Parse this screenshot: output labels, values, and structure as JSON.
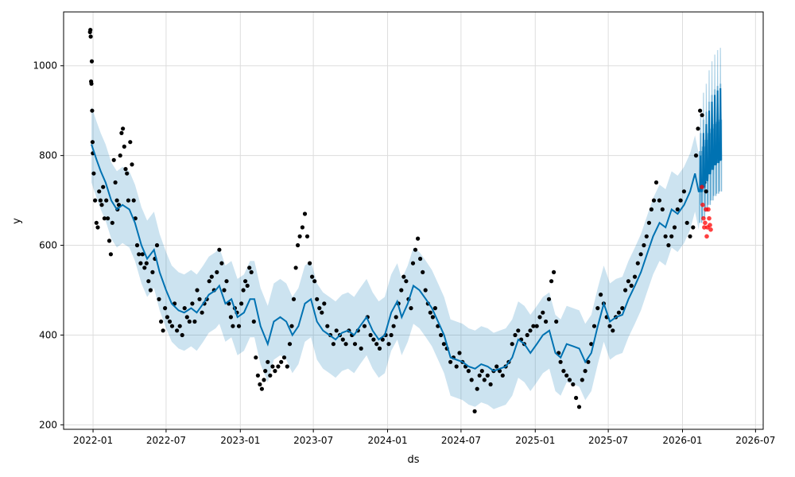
{
  "chart_data": {
    "type": "line",
    "title": "",
    "xlabel": "ds",
    "ylabel": "y",
    "ylim": [
      190,
      1120
    ],
    "xlim": [
      "2021-10-20",
      "2026-07-20"
    ],
    "grid": true,
    "yticks": [
      200,
      400,
      600,
      800,
      1000
    ],
    "xticks": [
      "2022-01",
      "2022-07",
      "2023-01",
      "2023-07",
      "2024-01",
      "2024-07",
      "2025-01",
      "2025-07",
      "2026-01",
      "2026-07"
    ],
    "colors": {
      "forecast": "#0072B2",
      "band": "#0072B2",
      "observed": "#000000",
      "test": "#ff0000",
      "grid": "#dddddd"
    },
    "uncertainty_halfwidth": 85,
    "yhat": [
      [
        "2021-12-28",
        825
      ],
      [
        "2022-01-10",
        790
      ],
      [
        "2022-01-20",
        765
      ],
      [
        "2022-02-01",
        740
      ],
      [
        "2022-02-15",
        700
      ],
      [
        "2022-03-01",
        680
      ],
      [
        "2022-03-15",
        690
      ],
      [
        "2022-04-01",
        680
      ],
      [
        "2022-04-15",
        650
      ],
      [
        "2022-05-01",
        600
      ],
      [
        "2022-05-15",
        570
      ],
      [
        "2022-06-01",
        590
      ],
      [
        "2022-06-15",
        540
      ],
      [
        "2022-07-01",
        500
      ],
      [
        "2022-07-15",
        470
      ],
      [
        "2022-08-01",
        455
      ],
      [
        "2022-08-15",
        450
      ],
      [
        "2022-09-01",
        460
      ],
      [
        "2022-09-15",
        450
      ],
      [
        "2022-10-01",
        470
      ],
      [
        "2022-10-15",
        490
      ],
      [
        "2022-11-01",
        500
      ],
      [
        "2022-11-10",
        510
      ],
      [
        "2022-11-25",
        470
      ],
      [
        "2022-12-10",
        480
      ],
      [
        "2022-12-25",
        440
      ],
      [
        "2023-01-10",
        450
      ],
      [
        "2023-01-25",
        480
      ],
      [
        "2023-02-05",
        480
      ],
      [
        "2023-02-20",
        420
      ],
      [
        "2023-03-10",
        380
      ],
      [
        "2023-03-25",
        430
      ],
      [
        "2023-04-10",
        440
      ],
      [
        "2023-04-25",
        430
      ],
      [
        "2023-05-10",
        400
      ],
      [
        "2023-05-25",
        420
      ],
      [
        "2023-06-10",
        470
      ],
      [
        "2023-06-25",
        480
      ],
      [
        "2023-07-10",
        430
      ],
      [
        "2023-07-25",
        410
      ],
      [
        "2023-08-10",
        400
      ],
      [
        "2023-08-25",
        390
      ],
      [
        "2023-09-10",
        405
      ],
      [
        "2023-09-25",
        410
      ],
      [
        "2023-10-10",
        400
      ],
      [
        "2023-10-25",
        420
      ],
      [
        "2023-11-10",
        440
      ],
      [
        "2023-11-25",
        410
      ],
      [
        "2023-12-10",
        390
      ],
      [
        "2023-12-25",
        400
      ],
      [
        "2024-01-10",
        450
      ],
      [
        "2024-01-25",
        475
      ],
      [
        "2024-02-05",
        440
      ],
      [
        "2024-02-20",
        470
      ],
      [
        "2024-03-05",
        510
      ],
      [
        "2024-03-20",
        500
      ],
      [
        "2024-04-05",
        480
      ],
      [
        "2024-04-20",
        460
      ],
      [
        "2024-05-05",
        430
      ],
      [
        "2024-05-20",
        400
      ],
      [
        "2024-06-05",
        350
      ],
      [
        "2024-06-20",
        345
      ],
      [
        "2024-07-05",
        340
      ],
      [
        "2024-07-20",
        330
      ],
      [
        "2024-08-05",
        325
      ],
      [
        "2024-08-20",
        335
      ],
      [
        "2024-09-05",
        330
      ],
      [
        "2024-09-20",
        320
      ],
      [
        "2024-10-05",
        325
      ],
      [
        "2024-10-20",
        330
      ],
      [
        "2024-11-05",
        350
      ],
      [
        "2024-11-20",
        390
      ],
      [
        "2024-12-05",
        380
      ],
      [
        "2024-12-20",
        360
      ],
      [
        "2025-01-05",
        380
      ],
      [
        "2025-01-20",
        400
      ],
      [
        "2025-02-05",
        410
      ],
      [
        "2025-02-20",
        360
      ],
      [
        "2025-03-05",
        350
      ],
      [
        "2025-03-20",
        380
      ],
      [
        "2025-04-05",
        375
      ],
      [
        "2025-04-20",
        370
      ],
      [
        "2025-05-05",
        340
      ],
      [
        "2025-05-20",
        360
      ],
      [
        "2025-06-05",
        420
      ],
      [
        "2025-06-20",
        470
      ],
      [
        "2025-07-05",
        430
      ],
      [
        "2025-07-20",
        440
      ],
      [
        "2025-08-05",
        445
      ],
      [
        "2025-08-20",
        480
      ],
      [
        "2025-09-05",
        510
      ],
      [
        "2025-09-20",
        540
      ],
      [
        "2025-10-05",
        580
      ],
      [
        "2025-10-20",
        620
      ],
      [
        "2025-11-05",
        650
      ],
      [
        "2025-11-20",
        640
      ],
      [
        "2025-12-05",
        680
      ],
      [
        "2025-12-20",
        670
      ],
      [
        "2026-01-05",
        690
      ],
      [
        "2026-01-20",
        720
      ],
      [
        "2026-02-01",
        760
      ],
      [
        "2026-02-10",
        720
      ]
    ],
    "forecast_weekly": {
      "start": "2026-02-12",
      "base": [
        720,
        730,
        745,
        760,
        770,
        780,
        785,
        790
      ],
      "peak": [
        800,
        850,
        870,
        900,
        920,
        935,
        945,
        950
      ],
      "upper_extra": 90,
      "lower_extra": 70
    },
    "observed_first_month_start_day": 24,
    "observed_monthly": {
      "2021-12": [
        1075,
        1080,
        1065,
        965,
        960,
        1010,
        900,
        830,
        805
      ],
      "2022-01": [
        760,
        700,
        650,
        640,
        720,
        700,
        690,
        730,
        660
      ],
      "2022-02": [
        700,
        660,
        610,
        580,
        650,
        790,
        740,
        700
      ],
      "2022-03": [
        680,
        690,
        800,
        850,
        860,
        820,
        770,
        760,
        700
      ],
      "2022-04": [
        830,
        780,
        700,
        660,
        600,
        580,
        560
      ],
      "2022-05": [
        580,
        550,
        560,
        520,
        500,
        540
      ],
      "2022-06": [
        570,
        600,
        480,
        430,
        410,
        460
      ],
      "2022-07": [
        440,
        430,
        420,
        470,
        410
      ],
      "2022-08": [
        420,
        400,
        460,
        440,
        430
      ],
      "2022-09": [
        470,
        430,
        500,
        480,
        450
      ],
      "2022-10": [
        470,
        480,
        520,
        530,
        500
      ],
      "2022-11": [
        540,
        590,
        560,
        500,
        520
      ],
      "2022-12": [
        470,
        440,
        420,
        460,
        450,
        420
      ],
      "2023-01": [
        470,
        500,
        520,
        510,
        550,
        540
      ],
      "2023-02": [
        430,
        350,
        310,
        290,
        280,
        300
      ],
      "2023-03": [
        320,
        340,
        310,
        330,
        320
      ],
      "2023-04": [
        330,
        340,
        350,
        330
      ],
      "2023-05": [
        380,
        420,
        480,
        550,
        600,
        620
      ],
      "2023-06": [
        640,
        670,
        620,
        560,
        530
      ],
      "2023-07": [
        520,
        480,
        460,
        450,
        470
      ],
      "2023-08": [
        420,
        400,
        380,
        410
      ],
      "2023-09": [
        400,
        390,
        380,
        410
      ],
      "2023-10": [
        400,
        380,
        410,
        370
      ],
      "2023-11": [
        420,
        440,
        400,
        390
      ],
      "2023-12": [
        380,
        370,
        390,
        400
      ],
      "2024-01": [
        380,
        400,
        420,
        440,
        470
      ],
      "2024-02": [
        500,
        530,
        520,
        480,
        460
      ],
      "2024-03": [
        560,
        590,
        615,
        570,
        540
      ],
      "2024-04": [
        500,
        470,
        450,
        440,
        460
      ],
      "2024-05": [
        420,
        400,
        380,
        370
      ],
      "2024-06": [
        340,
        350,
        330,
        360
      ],
      "2024-07": [
        340,
        330,
        320,
        300
      ],
      "2024-08": [
        230,
        280,
        310,
        320,
        300
      ],
      "2024-09": [
        310,
        290,
        320,
        330
      ],
      "2024-10": [
        320,
        310,
        330,
        340
      ],
      "2024-11": [
        380,
        400,
        410,
        390
      ],
      "2024-12": [
        380,
        400,
        410,
        420
      ],
      "2025-01": [
        420,
        440,
        450,
        430
      ],
      "2025-02": [
        480,
        520,
        540,
        430,
        360
      ],
      "2025-03": [
        340,
        320,
        310,
        300
      ],
      "2025-04": [
        290,
        260,
        240,
        300
      ],
      "2025-05": [
        320,
        340,
        380,
        420
      ],
      "2025-06": [
        460,
        490,
        470,
        440
      ],
      "2025-07": [
        420,
        410,
        440,
        450
      ],
      "2025-08": [
        460,
        500,
        520,
        510
      ],
      "2025-09": [
        530,
        560,
        580,
        600
      ],
      "2025-10": [
        620,
        650,
        680,
        700,
        740
      ],
      "2025-11": [
        700,
        680,
        620,
        600
      ],
      "2025-12": [
        620,
        640,
        680,
        700
      ],
      "2026-01": [
        720,
        650,
        620,
        640
      ],
      "2026-02": [
        800,
        860,
        900,
        890,
        740,
        720
      ]
    },
    "test_points": {
      "start": "2026-02-18",
      "end": "2026-03-12",
      "values": [
        730,
        690,
        660,
        640,
        650,
        680,
        620,
        640,
        680,
        660,
        645,
        635
      ]
    }
  }
}
